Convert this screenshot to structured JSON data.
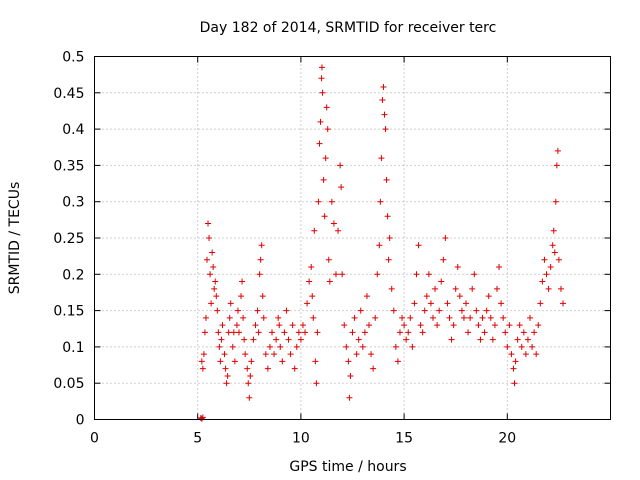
{
  "chart_data": {
    "type": "scatter",
    "title": "Day 182 of 2014, SRMTID for receiver terc",
    "xlabel": "GPS time / hours",
    "ylabel": "SRMTID / TECUs",
    "xlim": [
      0,
      25
    ],
    "ylim": [
      0,
      0.5
    ],
    "xticks": [
      0,
      5,
      10,
      15,
      20
    ],
    "xtick_labels": [
      "0",
      "5",
      "10",
      "15",
      "20"
    ],
    "yticks": [
      0,
      0.05,
      0.1,
      0.15,
      0.2,
      0.25,
      0.3,
      0.35,
      0.4,
      0.45,
      0.5
    ],
    "ytick_labels": [
      "0",
      "0.05",
      "0.1",
      "0.15",
      "0.2",
      "0.25",
      "0.3",
      "0.35",
      "0.4",
      "0.45",
      "0.5"
    ],
    "grid": true,
    "marker": "+",
    "series": [
      {
        "name": "SRMTID",
        "color": "#e00000",
        "points": [
          [
            5.15,
            0.002
          ],
          [
            5.2,
            0.001
          ],
          [
            5.25,
            0.003
          ],
          [
            5.2,
            0.08
          ],
          [
            5.25,
            0.07
          ],
          [
            5.3,
            0.09
          ],
          [
            5.35,
            0.12
          ],
          [
            5.4,
            0.14
          ],
          [
            5.45,
            0.22
          ],
          [
            5.5,
            0.27
          ],
          [
            5.55,
            0.25
          ],
          [
            5.6,
            0.2
          ],
          [
            5.65,
            0.16
          ],
          [
            5.7,
            0.23
          ],
          [
            5.75,
            0.21
          ],
          [
            5.8,
            0.18
          ],
          [
            5.85,
            0.19
          ],
          [
            5.9,
            0.17
          ],
          [
            5.95,
            0.15
          ],
          [
            6.0,
            0.12
          ],
          [
            6.05,
            0.1
          ],
          [
            6.1,
            0.08
          ],
          [
            6.15,
            0.11
          ],
          [
            6.2,
            0.13
          ],
          [
            6.3,
            0.09
          ],
          [
            6.35,
            0.07
          ],
          [
            6.4,
            0.05
          ],
          [
            6.45,
            0.06
          ],
          [
            6.5,
            0.12
          ],
          [
            6.55,
            0.14
          ],
          [
            6.6,
            0.16
          ],
          [
            6.7,
            0.1
          ],
          [
            6.75,
            0.12
          ],
          [
            6.8,
            0.08
          ],
          [
            6.9,
            0.13
          ],
          [
            6.95,
            0.15
          ],
          [
            7.0,
            0.12
          ],
          [
            7.1,
            0.17
          ],
          [
            7.15,
            0.19
          ],
          [
            7.2,
            0.14
          ],
          [
            7.25,
            0.11
          ],
          [
            7.3,
            0.09
          ],
          [
            7.4,
            0.07
          ],
          [
            7.45,
            0.05
          ],
          [
            7.5,
            0.03
          ],
          [
            7.55,
            0.06
          ],
          [
            7.6,
            0.08
          ],
          [
            7.7,
            0.11
          ],
          [
            7.8,
            0.13
          ],
          [
            7.9,
            0.15
          ],
          [
            7.95,
            0.12
          ],
          [
            8.0,
            0.2
          ],
          [
            8.05,
            0.22
          ],
          [
            8.1,
            0.24
          ],
          [
            8.15,
            0.17
          ],
          [
            8.2,
            0.14
          ],
          [
            8.3,
            0.09
          ],
          [
            8.4,
            0.07
          ],
          [
            8.5,
            0.1
          ],
          [
            8.6,
            0.12
          ],
          [
            8.7,
            0.09
          ],
          [
            8.8,
            0.11
          ],
          [
            8.9,
            0.14
          ],
          [
            8.95,
            0.13
          ],
          [
            9.0,
            0.1
          ],
          [
            9.1,
            0.08
          ],
          [
            9.2,
            0.12
          ],
          [
            9.3,
            0.15
          ],
          [
            9.4,
            0.11
          ],
          [
            9.5,
            0.09
          ],
          [
            9.6,
            0.13
          ],
          [
            9.7,
            0.07
          ],
          [
            9.8,
            0.1
          ],
          [
            9.9,
            0.12
          ],
          [
            10.0,
            0.11
          ],
          [
            10.1,
            0.13
          ],
          [
            10.2,
            0.12
          ],
          [
            10.3,
            0.16
          ],
          [
            10.4,
            0.19
          ],
          [
            10.5,
            0.21
          ],
          [
            10.55,
            0.17
          ],
          [
            10.6,
            0.14
          ],
          [
            10.65,
            0.26
          ],
          [
            10.7,
            0.08
          ],
          [
            10.75,
            0.05
          ],
          [
            10.8,
            0.12
          ],
          [
            10.85,
            0.3
          ],
          [
            10.9,
            0.38
          ],
          [
            10.95,
            0.41
          ],
          [
            11.0,
            0.47
          ],
          [
            11.02,
            0.485
          ],
          [
            11.05,
            0.45
          ],
          [
            11.1,
            0.33
          ],
          [
            11.15,
            0.28
          ],
          [
            11.2,
            0.36
          ],
          [
            11.25,
            0.43
          ],
          [
            11.3,
            0.4
          ],
          [
            11.35,
            0.22
          ],
          [
            11.4,
            0.19
          ],
          [
            11.5,
            0.3
          ],
          [
            11.6,
            0.27
          ],
          [
            11.7,
            0.2
          ],
          [
            11.8,
            0.26
          ],
          [
            11.9,
            0.35
          ],
          [
            11.95,
            0.32
          ],
          [
            12.0,
            0.2
          ],
          [
            12.1,
            0.13
          ],
          [
            12.2,
            0.1
          ],
          [
            12.3,
            0.08
          ],
          [
            12.35,
            0.03
          ],
          [
            12.4,
            0.06
          ],
          [
            12.5,
            0.12
          ],
          [
            12.6,
            0.14
          ],
          [
            12.7,
            0.09
          ],
          [
            12.8,
            0.11
          ],
          [
            12.9,
            0.15
          ],
          [
            13.0,
            0.1
          ],
          [
            13.1,
            0.12
          ],
          [
            13.2,
            0.17
          ],
          [
            13.3,
            0.13
          ],
          [
            13.4,
            0.09
          ],
          [
            13.5,
            0.07
          ],
          [
            13.6,
            0.14
          ],
          [
            13.7,
            0.2
          ],
          [
            13.8,
            0.24
          ],
          [
            13.85,
            0.3
          ],
          [
            13.9,
            0.36
          ],
          [
            13.95,
            0.44
          ],
          [
            14.0,
            0.458
          ],
          [
            14.05,
            0.42
          ],
          [
            14.1,
            0.4
          ],
          [
            14.15,
            0.33
          ],
          [
            14.2,
            0.28
          ],
          [
            14.25,
            0.22
          ],
          [
            14.3,
            0.25
          ],
          [
            14.4,
            0.18
          ],
          [
            14.5,
            0.15
          ],
          [
            14.6,
            0.1
          ],
          [
            14.7,
            0.08
          ],
          [
            14.8,
            0.12
          ],
          [
            14.9,
            0.14
          ],
          [
            15.0,
            0.13
          ],
          [
            15.1,
            0.11
          ],
          [
            15.2,
            0.12
          ],
          [
            15.3,
            0.14
          ],
          [
            15.4,
            0.1
          ],
          [
            15.5,
            0.16
          ],
          [
            15.6,
            0.2
          ],
          [
            15.7,
            0.24
          ],
          [
            15.8,
            0.13
          ],
          [
            15.9,
            0.12
          ],
          [
            16.0,
            0.15
          ],
          [
            16.1,
            0.17
          ],
          [
            16.2,
            0.2
          ],
          [
            16.3,
            0.16
          ],
          [
            16.4,
            0.14
          ],
          [
            16.5,
            0.18
          ],
          [
            16.6,
            0.13
          ],
          [
            16.7,
            0.15
          ],
          [
            16.8,
            0.19
          ],
          [
            16.9,
            0.22
          ],
          [
            17.0,
            0.25
          ],
          [
            17.1,
            0.16
          ],
          [
            17.2,
            0.14
          ],
          [
            17.3,
            0.11
          ],
          [
            17.4,
            0.13
          ],
          [
            17.5,
            0.18
          ],
          [
            17.6,
            0.21
          ],
          [
            17.7,
            0.17
          ],
          [
            17.8,
            0.15
          ],
          [
            17.9,
            0.14
          ],
          [
            18.0,
            0.16
          ],
          [
            18.1,
            0.12
          ],
          [
            18.2,
            0.14
          ],
          [
            18.3,
            0.18
          ],
          [
            18.4,
            0.2
          ],
          [
            18.5,
            0.15
          ],
          [
            18.6,
            0.13
          ],
          [
            18.7,
            0.11
          ],
          [
            18.8,
            0.14
          ],
          [
            18.9,
            0.12
          ],
          [
            19.0,
            0.15
          ],
          [
            19.1,
            0.17
          ],
          [
            19.2,
            0.14
          ],
          [
            19.3,
            0.11
          ],
          [
            19.4,
            0.13
          ],
          [
            19.5,
            0.18
          ],
          [
            19.6,
            0.21
          ],
          [
            19.7,
            0.16
          ],
          [
            19.8,
            0.14
          ],
          [
            19.9,
            0.12
          ],
          [
            20.0,
            0.1
          ],
          [
            20.1,
            0.13
          ],
          [
            20.2,
            0.09
          ],
          [
            20.3,
            0.07
          ],
          [
            20.35,
            0.05
          ],
          [
            20.4,
            0.08
          ],
          [
            20.5,
            0.11
          ],
          [
            20.6,
            0.13
          ],
          [
            20.7,
            0.1
          ],
          [
            20.8,
            0.12
          ],
          [
            20.9,
            0.09
          ],
          [
            21.0,
            0.11
          ],
          [
            21.1,
            0.14
          ],
          [
            21.2,
            0.1
          ],
          [
            21.3,
            0.12
          ],
          [
            21.4,
            0.09
          ],
          [
            21.5,
            0.13
          ],
          [
            21.6,
            0.16
          ],
          [
            21.7,
            0.19
          ],
          [
            21.8,
            0.22
          ],
          [
            21.9,
            0.2
          ],
          [
            22.0,
            0.18
          ],
          [
            22.1,
            0.21
          ],
          [
            22.2,
            0.24
          ],
          [
            22.25,
            0.26
          ],
          [
            22.3,
            0.23
          ],
          [
            22.35,
            0.3
          ],
          [
            22.4,
            0.35
          ],
          [
            22.45,
            0.37
          ],
          [
            22.5,
            0.22
          ],
          [
            22.6,
            0.18
          ],
          [
            22.7,
            0.16
          ]
        ]
      }
    ]
  }
}
